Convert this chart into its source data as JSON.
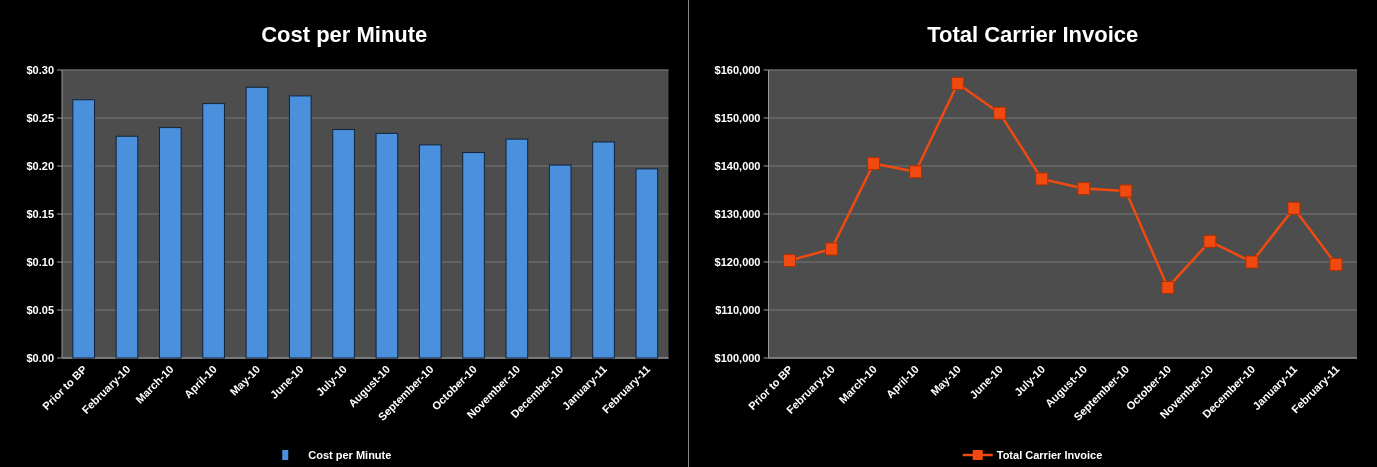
{
  "chart_data": [
    {
      "type": "bar",
      "title": "Cost per Minute",
      "categories": [
        "Prior to BP",
        "February-10",
        "March-10",
        "April-10",
        "May-10",
        "June-10",
        "July-10",
        "August-10",
        "September-10",
        "October-10",
        "November-10",
        "December-10",
        "January-11",
        "February-11"
      ],
      "series": [
        {
          "name": "Cost per Minute",
          "color": "#4a90dc",
          "values": [
            0.269,
            0.231,
            0.24,
            0.265,
            0.282,
            0.273,
            0.238,
            0.234,
            0.222,
            0.214,
            0.228,
            0.201,
            0.225,
            0.197
          ]
        }
      ],
      "ylim": [
        0,
        0.3
      ],
      "yticks": [
        {
          "value": 0,
          "label": "$0.00"
        },
        {
          "value": 0.05,
          "label": "$0.05"
        },
        {
          "value": 0.1,
          "label": "$0.10"
        },
        {
          "value": 0.15,
          "label": "$0.15"
        },
        {
          "value": 0.2,
          "label": "$0.20"
        },
        {
          "value": 0.25,
          "label": "$0.25"
        },
        {
          "value": 0.3,
          "label": "$0.30"
        }
      ],
      "grid": "y",
      "legend": "bottom"
    },
    {
      "type": "line",
      "title": "Total Carrier Invoice",
      "categories": [
        "Prior to BP",
        "February-10",
        "March-10",
        "April-10",
        "May-10",
        "June-10",
        "July-10",
        "August-10",
        "September-10",
        "October-10",
        "November-10",
        "December-10",
        "January-11",
        "February-11"
      ],
      "series": [
        {
          "name": "Total Carrier Invoice",
          "color": "#f04a10",
          "values": [
            120300,
            122700,
            140500,
            138800,
            157200,
            151000,
            137300,
            135300,
            134800,
            114700,
            124300,
            120000,
            131200,
            119500
          ]
        }
      ],
      "ylim": [
        100000,
        160000
      ],
      "yticks": [
        {
          "value": 100000,
          "label": "$100,000"
        },
        {
          "value": 110000,
          "label": "$110,000"
        },
        {
          "value": 120000,
          "label": "$120,000"
        },
        {
          "value": 130000,
          "label": "$130,000"
        },
        {
          "value": 140000,
          "label": "$140,000"
        },
        {
          "value": 150000,
          "label": "$150,000"
        },
        {
          "value": 160000,
          "label": "$160,000"
        }
      ],
      "grid": "y",
      "legend": "bottom",
      "marker": "square",
      "line_style": "solid"
    }
  ]
}
